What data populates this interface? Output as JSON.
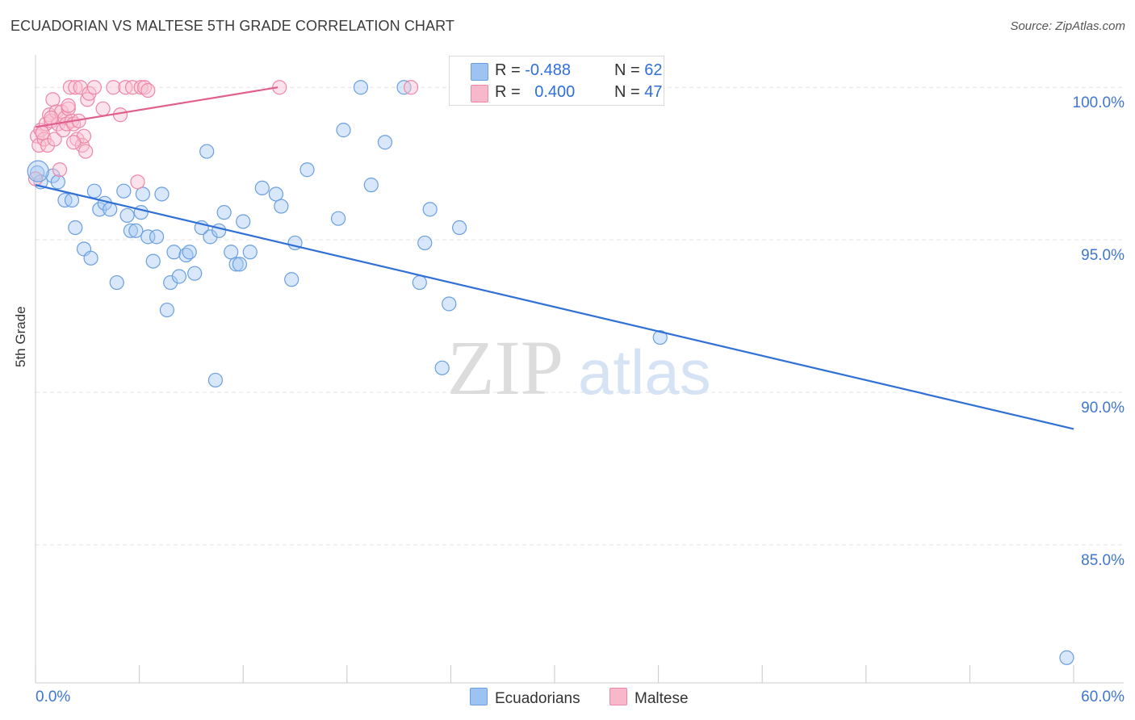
{
  "header": {
    "title": "ECUADORIAN VS MALTESE 5TH GRADE CORRELATION CHART",
    "source": "Source: ZipAtlas.com"
  },
  "watermark": {
    "zip": "ZIP",
    "atlas": "atlas"
  },
  "legend": {
    "rows": [
      {
        "r_label": "R =",
        "r_value": "-0.488",
        "n_label": "N =",
        "n_value": "62",
        "color": "#9dc3f2",
        "border": "#6a9fe0"
      },
      {
        "r_label": "R =",
        "r_value": "0.400",
        "n_label": "N =",
        "n_value": "47",
        "color": "#f8b8cb",
        "border": "#ee86a6"
      }
    ]
  },
  "bottom_legend": [
    {
      "label": "Ecuadorians",
      "color": "#9dc3f2",
      "border": "#6a9fe0"
    },
    {
      "label": "Maltese",
      "color": "#f8b8cb",
      "border": "#ee86a6"
    }
  ],
  "chart_data": {
    "type": "scatter",
    "title": "ECUADORIAN VS MALTESE 5TH GRADE CORRELATION CHART",
    "xlabel": "",
    "ylabel": "5th Grade",
    "xlim": [
      0,
      60
    ],
    "ylim": [
      80.5,
      100.8
    ],
    "x_tick_labels": [
      "0.0%",
      "60.0%"
    ],
    "y_ticks": [
      85,
      90,
      95,
      100
    ],
    "y_tick_labels": [
      "85.0%",
      "90.0%",
      "95.0%",
      "100.0%"
    ],
    "grid": true,
    "legend_placement": "top-center",
    "series": [
      {
        "name": "Ecuadorians",
        "color": "#6a9fe0",
        "fill": "#a9c9f2",
        "trend": {
          "x": [
            0,
            60
          ],
          "y": [
            96.8,
            88.8
          ],
          "color": "#2f6fd6"
        },
        "points": [
          {
            "x": 0.1,
            "y": 97.2
          },
          {
            "x": 0.3,
            "y": 96.9
          },
          {
            "x": 1.0,
            "y": 97.1
          },
          {
            "x": 1.3,
            "y": 96.9
          },
          {
            "x": 1.7,
            "y": 96.3
          },
          {
            "x": 2.1,
            "y": 96.3
          },
          {
            "x": 2.3,
            "y": 95.4
          },
          {
            "x": 2.8,
            "y": 94.7
          },
          {
            "x": 3.2,
            "y": 94.4
          },
          {
            "x": 3.4,
            "y": 96.6
          },
          {
            "x": 3.7,
            "y": 96.0
          },
          {
            "x": 4.0,
            "y": 96.2
          },
          {
            "x": 4.3,
            "y": 96.0
          },
          {
            "x": 4.7,
            "y": 93.6
          },
          {
            "x": 5.1,
            "y": 96.6
          },
          {
            "x": 5.3,
            "y": 95.8
          },
          {
            "x": 5.5,
            "y": 95.3
          },
          {
            "x": 5.8,
            "y": 95.3
          },
          {
            "x": 6.1,
            "y": 95.9
          },
          {
            "x": 6.2,
            "y": 96.5
          },
          {
            "x": 6.5,
            "y": 95.1
          },
          {
            "x": 6.8,
            "y": 94.3
          },
          {
            "x": 7.0,
            "y": 95.1
          },
          {
            "x": 7.3,
            "y": 96.5
          },
          {
            "x": 7.6,
            "y": 92.7
          },
          {
            "x": 7.8,
            "y": 93.6
          },
          {
            "x": 8.0,
            "y": 94.6
          },
          {
            "x": 8.3,
            "y": 93.8
          },
          {
            "x": 8.7,
            "y": 94.5
          },
          {
            "x": 8.9,
            "y": 94.6
          },
          {
            "x": 9.2,
            "y": 93.9
          },
          {
            "x": 9.6,
            "y": 95.4
          },
          {
            "x": 9.9,
            "y": 97.9
          },
          {
            "x": 10.1,
            "y": 95.1
          },
          {
            "x": 10.4,
            "y": 90.4
          },
          {
            "x": 10.6,
            "y": 95.3
          },
          {
            "x": 10.9,
            "y": 95.9
          },
          {
            "x": 11.3,
            "y": 94.6
          },
          {
            "x": 11.6,
            "y": 94.2
          },
          {
            "x": 11.8,
            "y": 94.2
          },
          {
            "x": 12.0,
            "y": 95.6
          },
          {
            "x": 12.4,
            "y": 94.6
          },
          {
            "x": 13.1,
            "y": 96.7
          },
          {
            "x": 13.9,
            "y": 96.5
          },
          {
            "x": 14.2,
            "y": 96.1
          },
          {
            "x": 14.8,
            "y": 93.7
          },
          {
            "x": 15.0,
            "y": 94.9
          },
          {
            "x": 15.7,
            "y": 97.3
          },
          {
            "x": 17.5,
            "y": 95.7
          },
          {
            "x": 17.8,
            "y": 98.6
          },
          {
            "x": 18.8,
            "y": 100.0
          },
          {
            "x": 19.4,
            "y": 96.8
          },
          {
            "x": 20.2,
            "y": 98.2
          },
          {
            "x": 21.3,
            "y": 100.0
          },
          {
            "x": 22.5,
            "y": 94.9
          },
          {
            "x": 22.8,
            "y": 96.0
          },
          {
            "x": 23.5,
            "y": 90.8
          },
          {
            "x": 23.9,
            "y": 92.9
          },
          {
            "x": 24.5,
            "y": 95.4
          },
          {
            "x": 36.1,
            "y": 91.8
          },
          {
            "x": 59.6,
            "y": 81.3
          },
          {
            "x": 22.2,
            "y": 93.6
          }
        ]
      },
      {
        "name": "Maltese",
        "color": "#ee86a6",
        "fill": "#f8c2d2",
        "trend": {
          "x": [
            0,
            14.0
          ],
          "y": [
            98.7,
            100.0
          ],
          "color": "#e05f8d"
        },
        "points": [
          {
            "x": 0.0,
            "y": 97.0
          },
          {
            "x": 0.1,
            "y": 98.4
          },
          {
            "x": 0.2,
            "y": 98.1
          },
          {
            "x": 0.3,
            "y": 98.6
          },
          {
            "x": 0.5,
            "y": 98.3
          },
          {
            "x": 0.6,
            "y": 98.8
          },
          {
            "x": 0.7,
            "y": 98.1
          },
          {
            "x": 0.8,
            "y": 99.1
          },
          {
            "x": 0.9,
            "y": 98.9
          },
          {
            "x": 1.0,
            "y": 99.6
          },
          {
            "x": 1.1,
            "y": 98.3
          },
          {
            "x": 1.2,
            "y": 99.2
          },
          {
            "x": 1.3,
            "y": 98.8
          },
          {
            "x": 1.4,
            "y": 97.3
          },
          {
            "x": 1.5,
            "y": 99.2
          },
          {
            "x": 1.6,
            "y": 98.6
          },
          {
            "x": 1.7,
            "y": 99.0
          },
          {
            "x": 1.8,
            "y": 98.8
          },
          {
            "x": 1.9,
            "y": 99.3
          },
          {
            "x": 2.0,
            "y": 100.0
          },
          {
            "x": 2.1,
            "y": 98.9
          },
          {
            "x": 2.2,
            "y": 98.8
          },
          {
            "x": 2.3,
            "y": 100.0
          },
          {
            "x": 2.4,
            "y": 98.3
          },
          {
            "x": 2.5,
            "y": 98.9
          },
          {
            "x": 2.6,
            "y": 100.0
          },
          {
            "x": 2.7,
            "y": 98.1
          },
          {
            "x": 2.8,
            "y": 98.4
          },
          {
            "x": 2.9,
            "y": 97.9
          },
          {
            "x": 3.0,
            "y": 99.6
          },
          {
            "x": 3.1,
            "y": 99.8
          },
          {
            "x": 3.4,
            "y": 100.0
          },
          {
            "x": 3.9,
            "y": 99.3
          },
          {
            "x": 4.5,
            "y": 100.0
          },
          {
            "x": 4.9,
            "y": 99.1
          },
          {
            "x": 5.2,
            "y": 100.0
          },
          {
            "x": 5.6,
            "y": 100.0
          },
          {
            "x": 5.9,
            "y": 96.9
          },
          {
            "x": 6.1,
            "y": 100.0
          },
          {
            "x": 6.3,
            "y": 100.0
          },
          {
            "x": 6.5,
            "y": 99.9
          },
          {
            "x": 0.4,
            "y": 98.5
          },
          {
            "x": 0.9,
            "y": 99.0
          },
          {
            "x": 1.9,
            "y": 99.4
          },
          {
            "x": 2.2,
            "y": 98.2
          },
          {
            "x": 14.1,
            "y": 100.0
          },
          {
            "x": 21.7,
            "y": 100.0
          }
        ]
      }
    ]
  }
}
